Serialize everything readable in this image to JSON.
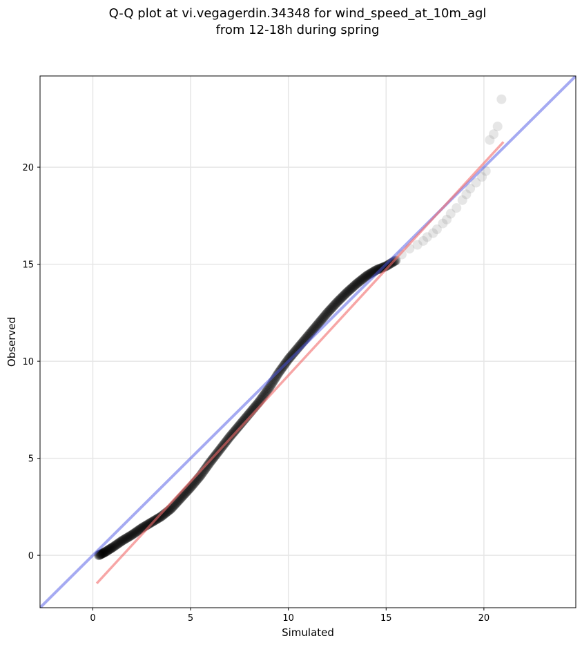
{
  "chart_data": {
    "type": "scatter",
    "title": "Q-Q plot at vi.vegagerdin.34348 for wind_speed_at_10m_agl",
    "subtitle": "from 12-18h during spring",
    "xlabel": "Simulated",
    "ylabel": "Observed",
    "xlim": [
      -2.7,
      24.7
    ],
    "ylim": [
      -2.7,
      24.7
    ],
    "x_ticks": [
      0,
      5,
      10,
      15,
      20
    ],
    "y_ticks": [
      0,
      5,
      10,
      15,
      20
    ],
    "grid": true,
    "colors": {
      "points": "#000000",
      "identity_line": "#4b55e6",
      "fit_line": "#f26b6b",
      "grid": "#e6e6e6"
    },
    "identity_line": {
      "x": [
        -2.7,
        24.7
      ],
      "y": [
        -2.7,
        24.7
      ]
    },
    "fit_line": {
      "x": [
        0.2,
        21.0
      ],
      "y": [
        -1.45,
        21.3
      ]
    },
    "quantile_curve": {
      "x": [
        0.3,
        0.6,
        1.0,
        1.5,
        2.0,
        2.5,
        3.0,
        3.5,
        4.0,
        4.5,
        5.0,
        5.5,
        6.0,
        6.5,
        7.0,
        7.5,
        8.0,
        8.5,
        9.0,
        9.5,
        10.0,
        10.5,
        11.0,
        11.5,
        12.0,
        12.5,
        13.0,
        13.5,
        14.0,
        14.5,
        15.0,
        15.5
      ],
      "y": [
        0.0,
        0.15,
        0.4,
        0.75,
        1.05,
        1.4,
        1.7,
        2.0,
        2.4,
        2.95,
        3.5,
        4.1,
        4.8,
        5.45,
        6.1,
        6.7,
        7.3,
        7.9,
        8.6,
        9.4,
        10.1,
        10.7,
        11.3,
        11.9,
        12.5,
        13.05,
        13.55,
        14.0,
        14.4,
        14.7,
        14.9,
        15.2
      ]
    },
    "tail_points": {
      "x": [
        15.8,
        16.2,
        16.6,
        16.9,
        17.1,
        17.4,
        17.6,
        17.9,
        18.1,
        18.3,
        18.6,
        18.9,
        19.1,
        19.3,
        19.6,
        19.9,
        20.1,
        20.3,
        20.5,
        20.7,
        20.9
      ],
      "y": [
        15.5,
        15.8,
        16.0,
        16.2,
        16.4,
        16.6,
        16.8,
        17.1,
        17.3,
        17.6,
        17.9,
        18.3,
        18.6,
        18.9,
        19.2,
        19.5,
        19.8,
        21.4,
        21.7,
        22.1,
        23.5
      ]
    }
  }
}
